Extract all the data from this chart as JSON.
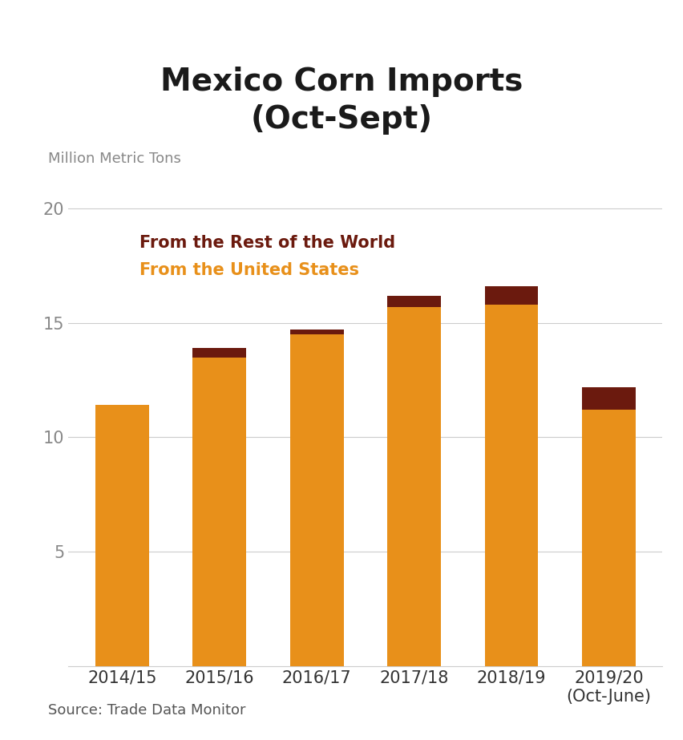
{
  "title": "Mexico Corn Imports\n(Oct-Sept)",
  "ylabel": "Million Metric Tons",
  "source": "Source: Trade Data Monitor",
  "categories": [
    "2014/15",
    "2015/16",
    "2016/17",
    "2017/18",
    "2018/19",
    "2019/20\n(Oct-June)"
  ],
  "us_values": [
    11.4,
    13.5,
    14.5,
    15.7,
    15.8,
    11.2
  ],
  "row_values": [
    0.0,
    0.4,
    0.2,
    0.5,
    0.8,
    1.0
  ],
  "us_color": "#E8901A",
  "row_color": "#6B1A0E",
  "legend_row_label": "From the Rest of the World",
  "legend_us_label": "From the United States",
  "legend_row_color": "#6B1A0E",
  "legend_us_color": "#E8901A",
  "ylim": [
    0,
    22
  ],
  "yticks": [
    5,
    10,
    15,
    20
  ],
  "background_color": "#ffffff",
  "grid_color": "#cccccc",
  "title_fontsize": 28,
  "axis_label_fontsize": 13,
  "tick_fontsize": 15,
  "legend_fontsize": 15,
  "source_fontsize": 13
}
